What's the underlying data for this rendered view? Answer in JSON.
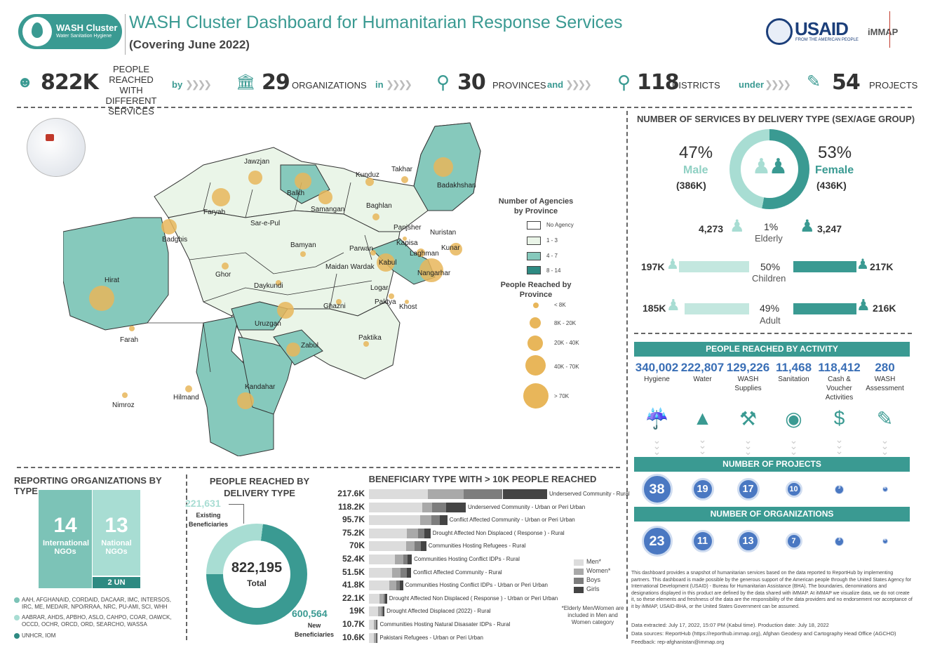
{
  "header": {
    "logo_title": "WASH Cluster",
    "logo_subtitle": "Water Sanitation Hygiene",
    "title": "WASH Cluster Dashboard for Humanitarian Response Services",
    "subtitle": "(Covering June 2022)",
    "usaid": "USAID",
    "usaid_sub": "FROM THE AMERICAN PEOPLE",
    "immap": "iMMAP"
  },
  "kpis": {
    "people_value": "822K",
    "people_label": "PEOPLE REACHED WITH DIFFERENT SERVICES",
    "by": "by",
    "orgs_value": "29",
    "orgs_label": "ORGANIZATIONS",
    "in": "in",
    "prov_value": "30",
    "prov_label": "PROVINCES",
    "and": "and",
    "dist_value": "118",
    "dist_label": "DISTRICTS",
    "under": "under",
    "proj_value": "54",
    "proj_label": "PROJECTS"
  },
  "map": {
    "legend_agencies_title": "Number of Agencies by Province",
    "legend_agencies": [
      "No Agency",
      "1 - 3",
      "4 - 7",
      "8 - 14"
    ],
    "legend_people_title": "People Reached by Province",
    "legend_people": [
      "< 8K",
      "8K - 20K",
      "20K - 40K",
      "40K - 70K",
      "> 70K"
    ],
    "provinces": [
      "Jawzjan",
      "Kunduz",
      "Takhar",
      "Badakhshan",
      "Balkh",
      "Faryab",
      "Samangan",
      "Baghlan",
      "Sar-e-Pul",
      "Badghis",
      "Panjsher",
      "Nuristan",
      "Kapisa",
      "Laghman",
      "Kunar",
      "Bamyan",
      "Parwan",
      "Kabul",
      "Nangarhar",
      "Maidan Wardak",
      "Hirat",
      "Ghor",
      "Daykundi",
      "Logar",
      "Paktya",
      "Khost",
      "Ghazni",
      "Uruzgan",
      "Farah",
      "Zabul",
      "Paktika",
      "Kandahar",
      "Hilmand",
      "Nimroz"
    ]
  },
  "sex_age": {
    "title": "NUMBER OF SERVICES BY DELIVERY TYPE (SEX/AGE GROUP)",
    "male_pct": "47%",
    "male_label": "Male",
    "male_value": "(386K)",
    "female_pct": "53%",
    "female_label": "Female",
    "female_value": "(436K)",
    "elderly": {
      "left": "4,273",
      "pct": "1%",
      "label": "Elderly",
      "right": "3,247"
    },
    "children": {
      "left": "197K",
      "pct": "50%",
      "label": "Children",
      "right": "217K"
    },
    "adult": {
      "left": "185K",
      "pct": "49%",
      "label": "Adult",
      "right": "216K"
    }
  },
  "activity": {
    "title": "PEOPLE REACHED BY ACTIVITY",
    "items": [
      {
        "value": "340,002",
        "label": "Hygiene",
        "icon": "hand-tap-icon"
      },
      {
        "value": "222,807",
        "label": "Water",
        "icon": "water-drop-icon"
      },
      {
        "value": "129,226",
        "label": "WASH Supplies",
        "icon": "kit-icon"
      },
      {
        "value": "11,468",
        "label": "Sanitation",
        "icon": "hand-drop-icon"
      },
      {
        "value": "118,412",
        "label": "Cash & Voucher Activities",
        "icon": "money-bag-icon"
      },
      {
        "value": "280",
        "label": "WASH Assessment",
        "icon": "assessment-icon"
      }
    ],
    "projects_title": "NUMBER OF PROJECTS",
    "projects": [
      "38",
      "19",
      "17",
      "10",
      "3",
      "1"
    ],
    "orgs_title": "NUMBER OF ORGANIZATIONS",
    "orgs": [
      "23",
      "11",
      "13",
      "7",
      "3",
      "1"
    ]
  },
  "disclaimer": "This dashboard provides a snapshot of humanitarian services based on the data reported to ReportHub by implementing partners. This dashboard is made possible by the generous support of the American people through the United States Agency for International Development (USAID) - Bureau for Humanitarian Assistance (BHA). The boundaries, denominations and designations displayed in this product are defined by the data shared with iMMAP. At iMMAP we visualize data, we do not create it, so these elements and freshness of the data are the responsibility of the data providers and no endorsement nor acceptance of it by iMMAP, USAID-BHA, or the United States Government can be assumed.",
  "extracted": "Data extracted: July 17, 2022, 15:07 PM (Kabul time). Production date: July 18, 2022",
  "sources": "Data sources: ReportHub (https://reporthub.immap.org), Afghan Geodesy and Cartography Head Office (AGCHO)",
  "feedback": "Feedback: rep-afghanistan@immap.org",
  "orgs_by_type": {
    "title": "REPORTING ORGANIZATIONS BY TYPE",
    "intl_value": "14",
    "intl_label": "International NGOs",
    "nat_value": "13",
    "nat_label": "National NGOs",
    "un_label": "2 UN",
    "list_intl": "AAH, AFGHANAID, CORDAID, DACAAR, IMC, INTERSOS, IRC, ME, MEDAIR, NPO/RRAA, NRC, PU-AMI, SCI, WHH",
    "list_nat": "AABRAR, AHDS, APBHO, ASLO, CAHPO, COAR, OAWCK, OCCD, OCHR, ORCD, ORD, SEARCHO, WASSA",
    "list_un": "UNHCR, IOM"
  },
  "delivery": {
    "title": "PEOPLE REACHED BY DELIVERY TYPE",
    "existing_value": "221,631",
    "existing_label": "Existing Beneficiaries",
    "total_value": "822,195",
    "total_label": "Total",
    "new_value": "600,564",
    "new_label": "New Beneficiaries",
    "existing_fraction": 0.27
  },
  "chart_data": {
    "type": "bar",
    "title": "BENEFICIARY TYPE WITH > 10K PEOPLE REACHED",
    "series_names": [
      "Men*",
      "Women*",
      "Boys",
      "Girls"
    ],
    "colors": [
      "#dcdcdc",
      "#a9a9a9",
      "#7d7d7d",
      "#444444"
    ],
    "rows": [
      {
        "value": "217.6K",
        "total": 217.6,
        "label": "Underserved Community - Rural",
        "parts": [
          0.33,
          0.2,
          0.22,
          0.25
        ]
      },
      {
        "value": "118.2K",
        "total": 118.2,
        "label": "Underserved Community - Urban or Peri Urban",
        "parts": [
          0.55,
          0.1,
          0.15,
          0.2
        ]
      },
      {
        "value": "95.7K",
        "total": 95.7,
        "label": "Conflict Affected Community - Urban or Peri Urban",
        "parts": [
          0.65,
          0.15,
          0.1,
          0.1
        ]
      },
      {
        "value": "75.2K",
        "total": 75.2,
        "label": "Drought Affected Non Displaced ( Response ) - Rural",
        "parts": [
          0.62,
          0.18,
          0.1,
          0.1
        ]
      },
      {
        "value": "70K",
        "total": 70,
        "label": "Communities Hosting Refugees - Rural",
        "parts": [
          0.65,
          0.15,
          0.1,
          0.1
        ]
      },
      {
        "value": "52.4K",
        "total": 52.4,
        "label": "Communities Hosting Conflict IDPs - Rural",
        "parts": [
          0.6,
          0.2,
          0.1,
          0.1
        ]
      },
      {
        "value": "51.5K",
        "total": 51.5,
        "label": "Conflict Affected Community - Rural",
        "parts": [
          0.55,
          0.2,
          0.15,
          0.1
        ]
      },
      {
        "value": "41.8K",
        "total": 41.8,
        "label": "Communities Hosting Conflict IDPs - Urban or Peri Urban",
        "parts": [
          0.6,
          0.2,
          0.1,
          0.1
        ]
      },
      {
        "value": "22.1K",
        "total": 22.1,
        "label": "Drought Affected Non Displaced ( Response ) - Urban or Peri Urban",
        "parts": [
          0.6,
          0.2,
          0.1,
          0.1
        ]
      },
      {
        "value": "19K",
        "total": 19,
        "label": "Drought Affected Displaced (2022) - Rural",
        "parts": [
          0.6,
          0.2,
          0.1,
          0.1
        ]
      },
      {
        "value": "10.7K",
        "total": 10.7,
        "label": "Communities Hosting Natural Disasater IDPs - Rural",
        "parts": [
          0.6,
          0.2,
          0.1,
          0.1
        ]
      },
      {
        "value": "10.6K",
        "total": 10.6,
        "label": "Pakistani Refugees - Urban or Peri Urban",
        "parts": [
          0.6,
          0.2,
          0.1,
          0.1
        ]
      }
    ],
    "note": "*Elderly Men/Women are included in Men and Women category"
  }
}
